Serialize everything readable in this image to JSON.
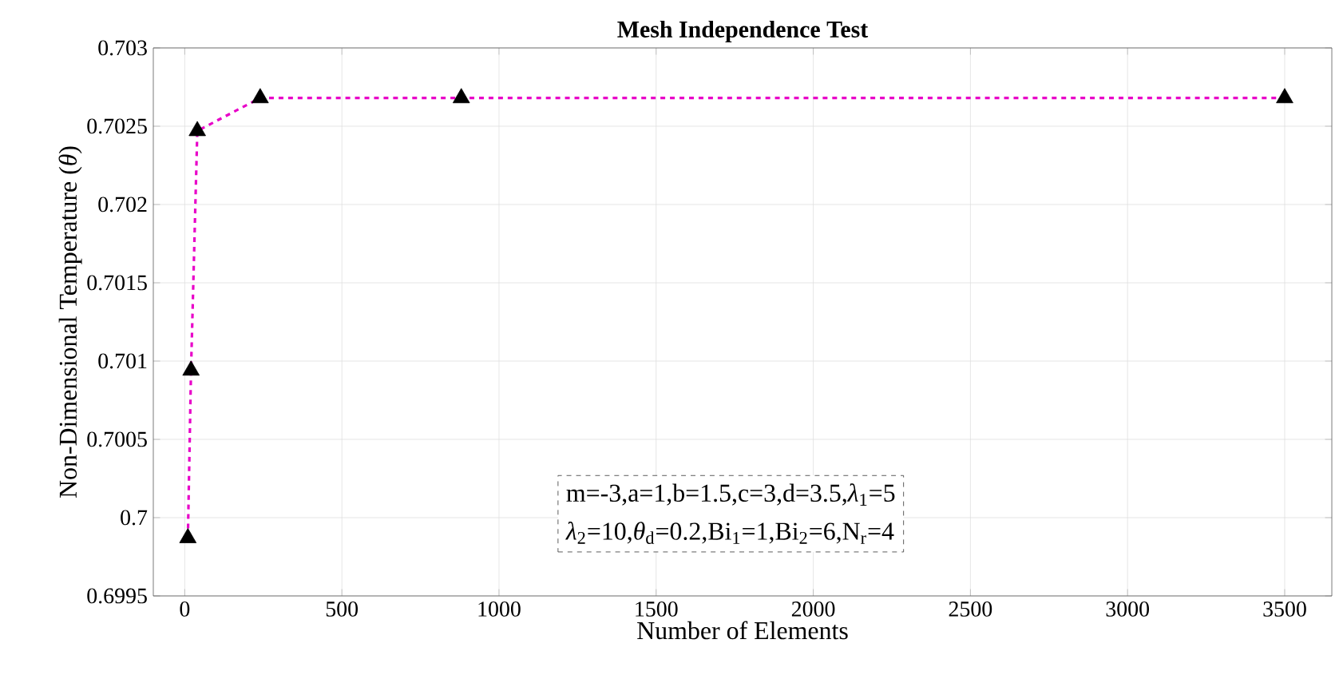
{
  "chart_data": {
    "type": "line",
    "title": "Mesh Independence Test",
    "xlabel": "Number of Elements",
    "ylabel": "Non-Dimensional Temperature (*θ*)",
    "x": [
      10,
      20,
      40,
      240,
      880,
      3500
    ],
    "series": [
      {
        "color": "#e800c8",
        "values": [
          0.69987,
          0.70094,
          0.70247,
          0.70268,
          0.70268,
          0.70268
        ]
      }
    ],
    "xlim": [
      -100,
      3650
    ],
    "ylim": [
      0.6995,
      0.703
    ],
    "xticks": [
      0,
      500,
      1000,
      1500,
      2000,
      2500,
      3000,
      3500
    ],
    "yticks": [
      0.6995,
      0.7,
      0.7005,
      0.701,
      0.7015,
      0.702,
      0.7025,
      0.703
    ],
    "grid": true,
    "marker": "triangle",
    "line_style": "dashed",
    "annotations": [
      "m=-3,a=1,b=1.5,c=3,d=3.5,*λ*$_{1}$=5",
      "*λ*$_{2}$=10,*θ*$_{d}$=0.2,Bi$_{1}$=1,Bi$_{2}$=6,N$_{r}$=4"
    ]
  }
}
